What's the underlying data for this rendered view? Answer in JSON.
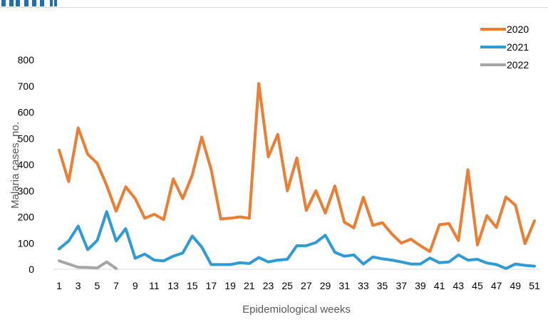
{
  "chart_data": {
    "type": "line",
    "title": "",
    "xlabel": "Epidemiological weeks",
    "ylabel": "Malaria cases, no.",
    "ylim": [
      0,
      800
    ],
    "yticks": [
      "0",
      "100",
      "200",
      "300",
      "400",
      "500",
      "600",
      "700",
      "800"
    ],
    "xlim": [
      1,
      51
    ],
    "xticks": [
      "1",
      "3",
      "5",
      "7",
      "9",
      "11",
      "13",
      "15",
      "17",
      "19",
      "21",
      "23",
      "25",
      "27",
      "29",
      "31",
      "33",
      "35",
      "37",
      "39",
      "41",
      "43",
      "45",
      "47",
      "49",
      "51"
    ],
    "grid": false,
    "legend": "top-right",
    "series": [
      {
        "name": "2020",
        "color": "#ED7D31",
        "x": [
          1,
          2,
          3,
          4,
          5,
          6,
          7,
          8,
          9,
          10,
          11,
          12,
          13,
          14,
          15,
          16,
          17,
          18,
          19,
          20,
          21,
          22,
          23,
          24,
          25,
          26,
          27,
          28,
          29,
          30,
          31,
          32,
          33,
          34,
          35,
          36,
          37,
          38,
          39,
          40,
          41,
          42,
          43,
          44,
          45,
          46,
          47,
          48,
          49,
          50,
          51
        ],
        "values": [
          455,
          335,
          540,
          440,
          405,
          320,
          222,
          315,
          270,
          195,
          210,
          190,
          345,
          270,
          360,
          505,
          380,
          192,
          195,
          200,
          195,
          710,
          430,
          515,
          300,
          425,
          225,
          300,
          215,
          318,
          180,
          158,
          275,
          168,
          178,
          135,
          100,
          115,
          90,
          68,
          170,
          175,
          110,
          380,
          93,
          205,
          160,
          276,
          245,
          98,
          185
        ]
      },
      {
        "name": "2021",
        "color": "#2E9BD6",
        "x": [
          1,
          2,
          3,
          4,
          5,
          6,
          7,
          8,
          9,
          10,
          11,
          12,
          13,
          14,
          15,
          16,
          17,
          18,
          19,
          20,
          21,
          22,
          23,
          24,
          25,
          26,
          27,
          28,
          29,
          30,
          31,
          32,
          33,
          34,
          35,
          36,
          37,
          38,
          39,
          40,
          41,
          42,
          43,
          44,
          45,
          46,
          47,
          48,
          49,
          50,
          51
        ],
        "values": [
          78,
          108,
          165,
          75,
          110,
          220,
          108,
          155,
          42,
          58,
          35,
          32,
          50,
          62,
          127,
          85,
          18,
          18,
          18,
          25,
          22,
          45,
          28,
          35,
          38,
          90,
          90,
          102,
          130,
          65,
          50,
          55,
          20,
          47,
          40,
          35,
          28,
          20,
          20,
          43,
          25,
          28,
          55,
          35,
          38,
          24,
          18,
          3,
          20,
          15,
          12
        ]
      },
      {
        "name": "2022",
        "color": "#A5A5A5",
        "x": [
          1,
          2,
          3,
          4,
          5,
          6,
          7
        ],
        "values": [
          32,
          20,
          8,
          7,
          5,
          28,
          3
        ]
      }
    ]
  }
}
